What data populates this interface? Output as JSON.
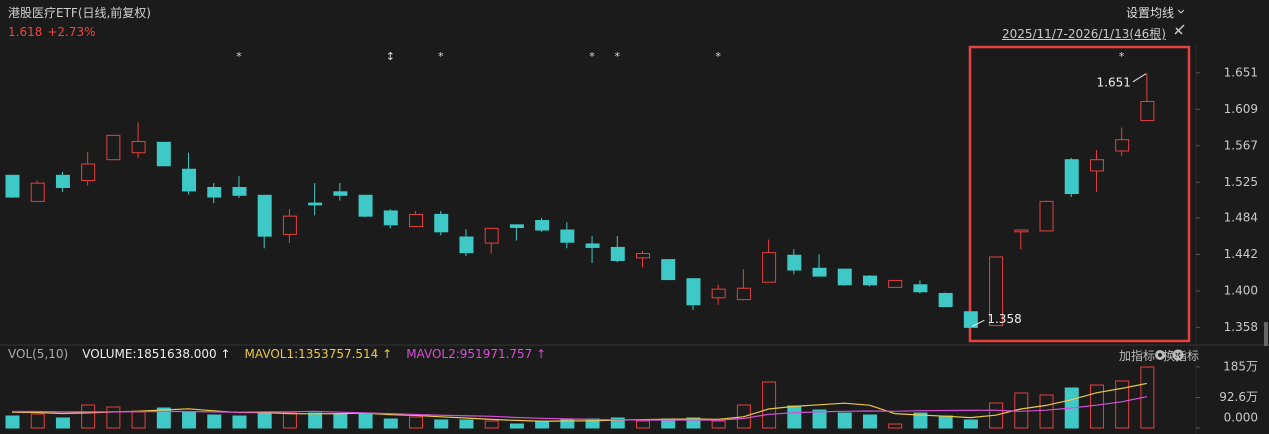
{
  "header": {
    "title": "港股医疗ETF(日线,前复权)",
    "change": "+2.73%",
    "settings": "设置均线",
    "range": "2025/11/7-2026/1/13(46根)"
  },
  "toolbar": {
    "add": "加指标",
    "switch": "换指标"
  },
  "chart_data": [
    {
      "type": "candlestick",
      "up_color": "#e5403f",
      "down_color": "#3ec9c6",
      "ylim": [
        1.34,
        1.683
      ],
      "yticks": [
        1.651,
        1.609,
        1.567,
        1.525,
        1.484,
        1.442,
        {
          "value": 1.4,
          "label": "1.400"
        },
        1.358
      ],
      "open": [
        1.533,
        1.503,
        1.533,
        1.527,
        1.551,
        1.559,
        1.571,
        1.54,
        1.519,
        1.519,
        1.51,
        1.465,
        1.501,
        1.514,
        1.51,
        1.492,
        1.474,
        1.488,
        1.462,
        1.455,
        1.476,
        1.481,
        1.47,
        1.454,
        1.45,
        1.438,
        1.436,
        1.414,
        1.392,
        1.39,
        1.41,
        1.441,
        1.426,
        1.425,
        1.417,
        1.404,
        1.407,
        1.397,
        1.376,
        1.36,
        1.468,
        1.469,
        1.551,
        1.538,
        1.561,
        1.596
      ],
      "high": [
        1.533,
        1.527,
        1.537,
        1.56,
        1.579,
        1.594,
        1.571,
        1.559,
        1.524,
        1.532,
        1.51,
        1.494,
        1.524,
        1.524,
        1.51,
        1.494,
        1.492,
        1.492,
        1.471,
        1.472,
        1.476,
        1.484,
        1.479,
        1.463,
        1.463,
        1.446,
        1.436,
        1.414,
        1.407,
        1.425,
        1.459,
        1.448,
        1.442,
        1.425,
        1.418,
        1.412,
        1.412,
        1.398,
        1.376,
        1.439,
        1.471,
        1.504,
        1.553,
        1.562,
        1.588,
        1.651
      ],
      "low": [
        1.507,
        1.503,
        1.514,
        1.521,
        1.551,
        1.553,
        1.544,
        1.511,
        1.501,
        1.507,
        1.449,
        1.455,
        1.487,
        1.504,
        1.485,
        1.472,
        1.474,
        1.464,
        1.44,
        1.443,
        1.458,
        1.468,
        1.449,
        1.432,
        1.433,
        1.427,
        1.413,
        1.378,
        1.384,
        1.389,
        1.41,
        1.419,
        1.417,
        1.406,
        1.405,
        1.404,
        1.397,
        1.382,
        1.358,
        1.36,
        1.448,
        1.469,
        1.508,
        1.514,
        1.555,
        1.596
      ],
      "close": [
        1.508,
        1.524,
        1.519,
        1.546,
        1.579,
        1.572,
        1.544,
        1.515,
        1.508,
        1.51,
        1.463,
        1.486,
        1.499,
        1.51,
        1.486,
        1.476,
        1.488,
        1.468,
        1.444,
        1.472,
        1.473,
        1.47,
        1.456,
        1.45,
        1.435,
        1.443,
        1.413,
        1.384,
        1.402,
        1.403,
        1.444,
        1.424,
        1.417,
        1.407,
        1.407,
        1.412,
        1.399,
        1.382,
        1.358,
        1.439,
        1.47,
        1.503,
        1.512,
        1.551,
        1.574,
        1.618
      ],
      "markers": [
        null,
        null,
        null,
        null,
        null,
        null,
        null,
        null,
        null,
        "*",
        null,
        null,
        null,
        null,
        null,
        "↕",
        null,
        "*",
        null,
        null,
        null,
        null,
        null,
        "*",
        "*",
        null,
        null,
        null,
        "*",
        null,
        null,
        null,
        null,
        null,
        null,
        null,
        null,
        null,
        null,
        null,
        null,
        null,
        null,
        null,
        "*",
        null
      ]
    },
    {
      "type": "bar",
      "title": "VOL(5,10)",
      "value_label": "VOLUME:1851638.000 ↑",
      "ylim": [
        0,
        1851638
      ],
      "yticks": [
        {
          "value": 1851638,
          "label": "185万"
        },
        {
          "value": 925819,
          "label": "92.6万"
        },
        {
          "value": 0,
          "label": "0.000"
        }
      ],
      "values": [
        364000,
        425000,
        304000,
        698000,
        637000,
        486000,
        607000,
        486000,
        395000,
        364000,
        486000,
        455000,
        455000,
        425000,
        425000,
        273000,
        334000,
        243000,
        243000,
        212000,
        121000,
        212000,
        273000,
        273000,
        304000,
        212000,
        273000,
        304000,
        212000,
        698000,
        1396000,
        668000,
        546000,
        455000,
        395000,
        121000,
        455000,
        364000,
        243000,
        759000,
        1062000,
        1002000,
        1214000,
        1305000,
        1427000,
        1851638
      ],
      "series": [
        {
          "name": "MAVOL1",
          "label": "MAVOL1:1353757.514 ↑",
          "color": "#e9c947",
          "values": [
            480000,
            470000,
            440000,
            460000,
            486000,
            510000,
            546000,
            583000,
            522000,
            468000,
            468000,
            437000,
            431000,
            437000,
            449000,
            407000,
            382000,
            340000,
            304000,
            261000,
            231000,
            206000,
            212000,
            218000,
            237000,
            255000,
            267000,
            273000,
            261000,
            340000,
            577000,
            656000,
            704000,
            753000,
            692000,
            437000,
            394000,
            358000,
            316000,
            388000,
            577000,
            686000,
            856000,
            1068000,
            1202000,
            1353757.514
          ]
        },
        {
          "name": "MAVOL2",
          "label": "MAVOL2:951971.757 ↑",
          "color": "#d64fd6",
          "values": [
            500000,
            500000,
            490000,
            490000,
            490000,
            495000,
            500000,
            500000,
            490000,
            477000,
            489000,
            492000,
            507000,
            480000,
            459000,
            438000,
            410000,
            386000,
            371000,
            355000,
            319000,
            294000,
            276000,
            261000,
            249000,
            243000,
            237000,
            243000,
            240000,
            289000,
            416000,
            462000,
            489000,
            507000,
            516000,
            507000,
            525000,
            531000,
            535000,
            540000,
            507000,
            540000,
            607000,
            692000,
            795000,
            951971.757
          ]
        }
      ]
    }
  ]
}
